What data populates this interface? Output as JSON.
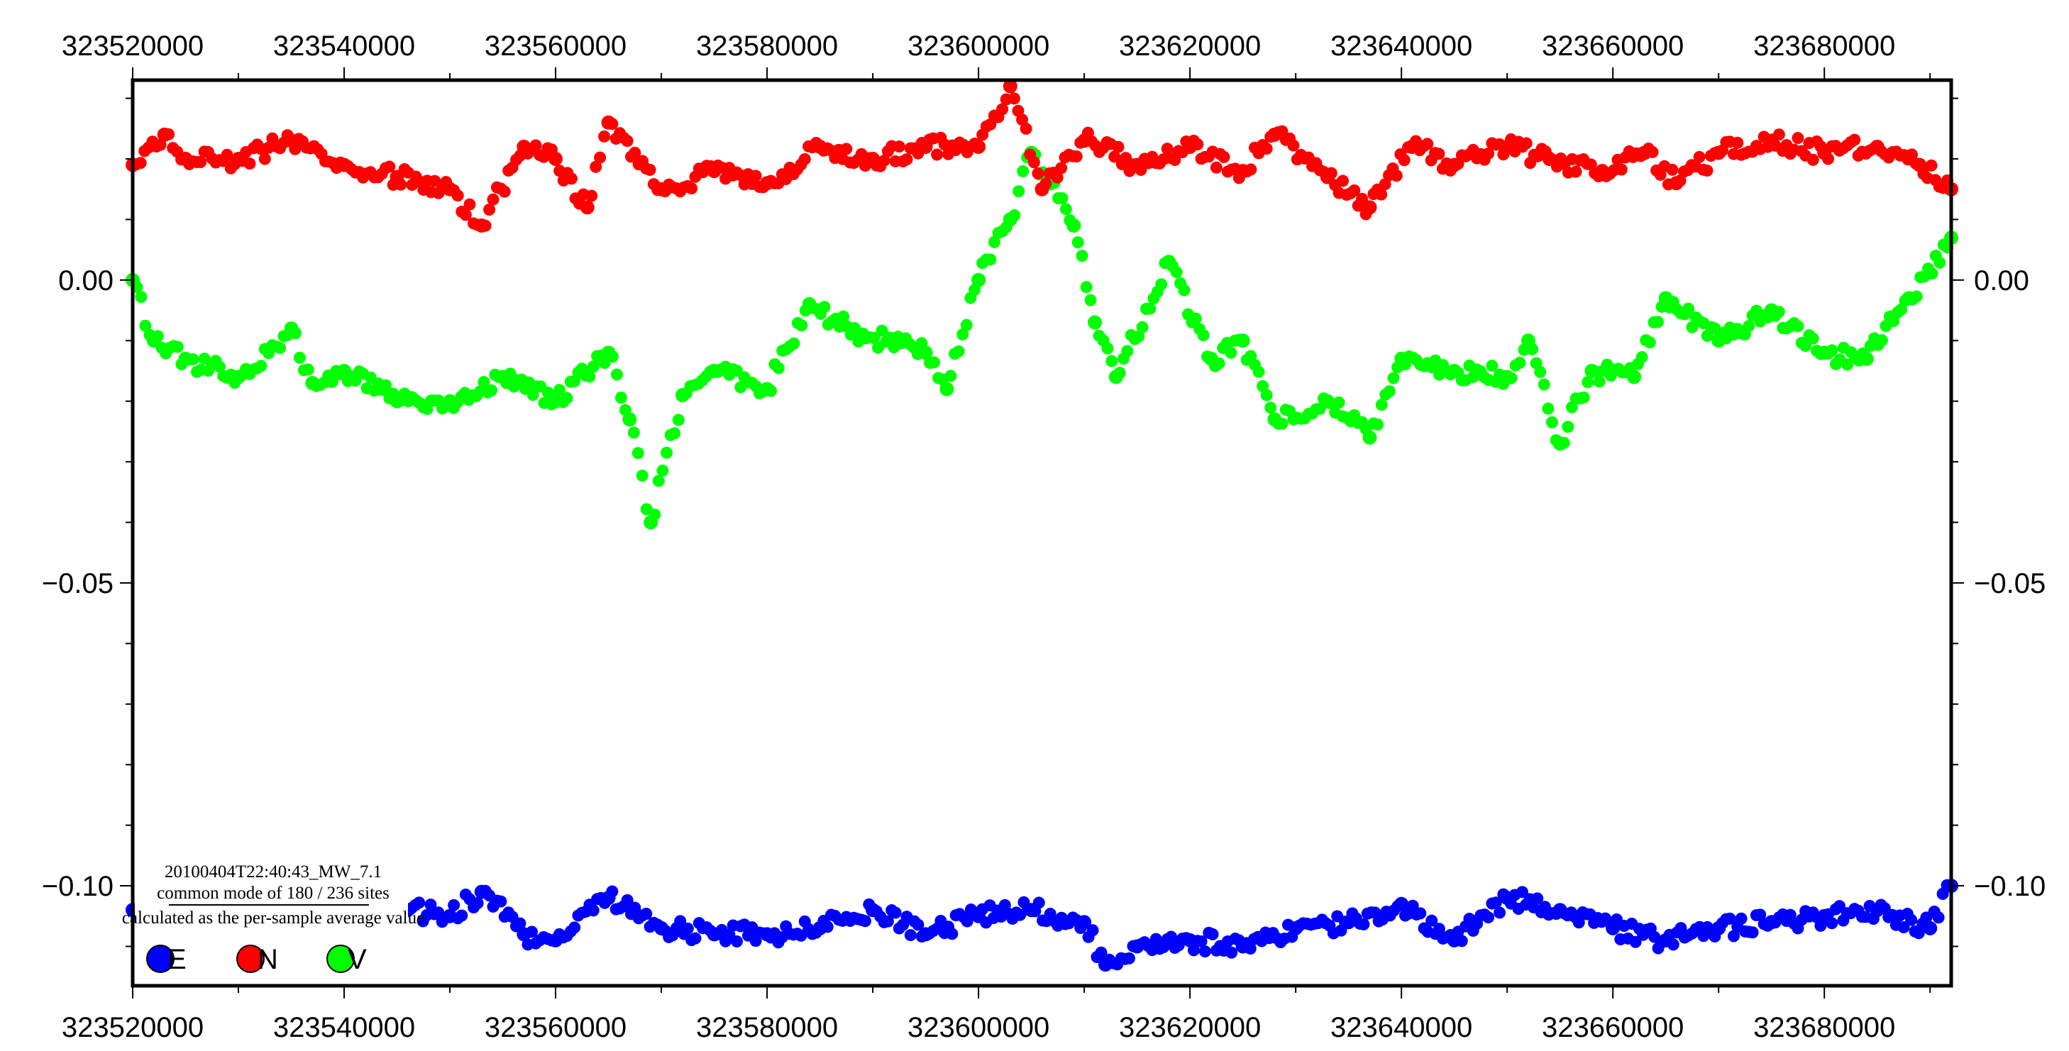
{
  "chart_data": {
    "type": "scatter",
    "title": "",
    "xlabel": "",
    "ylabel": "",
    "xlim": [
      323520000,
      323692000
    ],
    "ylim": [
      -0.1165,
      0.033
    ],
    "grid": false,
    "x_ticks": [
      323520000,
      323540000,
      323560000,
      323580000,
      323600000,
      323620000,
      323640000,
      323660000,
      323680000
    ],
    "x_tick_labels": [
      "323520000",
      "323540000",
      "323560000",
      "323580000",
      "323600000",
      "323620000",
      "323640000",
      "323660000",
      "323680000"
    ],
    "y_ticks": [
      0.0,
      -0.05,
      -0.1
    ],
    "y_tick_labels": [
      "0.00",
      "−0.05",
      "−0.10"
    ],
    "legend": {
      "position": "bottom-left",
      "title_lines": [
        "20100404T22:40:43_MW_7.1",
        "common mode of 180 / 236 sites",
        "calculated as the per-sample average value"
      ],
      "entries": [
        {
          "label": "E",
          "color": "#0000ff"
        },
        {
          "label": "N",
          "color": "#ff0000"
        },
        {
          "label": "V",
          "color": "#00ff00"
        }
      ]
    },
    "series": [
      {
        "name": "E",
        "color": "#0000ff",
        "x": [
          323520000,
          323530000,
          323540000,
          323546000,
          323550000,
          323553000,
          323557000,
          323560000,
          323565000,
          323570000,
          323575000,
          323580000,
          323585000,
          323590000,
          323595000,
          323600000,
          323605000,
          323610000,
          323612000,
          323615000,
          323620000,
          323625000,
          323630000,
          323635000,
          323640000,
          323645000,
          323650000,
          323655000,
          323660000,
          323665000,
          323670000,
          323675000,
          323680000,
          323685000,
          323690000,
          323692000
        ],
        "y": [
          -0.104,
          -0.105,
          -0.106,
          -0.104,
          -0.105,
          -0.101,
          -0.108,
          -0.109,
          -0.102,
          -0.107,
          -0.108,
          -0.108,
          -0.107,
          -0.104,
          -0.108,
          -0.105,
          -0.104,
          -0.106,
          -0.113,
          -0.11,
          -0.109,
          -0.11,
          -0.107,
          -0.106,
          -0.103,
          -0.109,
          -0.102,
          -0.104,
          -0.107,
          -0.109,
          -0.107,
          -0.106,
          -0.105,
          -0.104,
          -0.107,
          -0.1
        ]
      },
      {
        "name": "N",
        "color": "#ff0000",
        "x": [
          323520000,
          323523000,
          323525000,
          323530000,
          323535000,
          323540000,
          323545000,
          323550000,
          323553000,
          323557000,
          323560000,
          323563000,
          323565000,
          323570000,
          323575000,
          323580000,
          323585000,
          323590000,
          323595000,
          323600000,
          323603000,
          323606000,
          323610000,
          323615000,
          323620000,
          323625000,
          323628000,
          323633000,
          323637000,
          323641000,
          323645000,
          323650000,
          323654000,
          323659000,
          323663000,
          323666000,
          323670000,
          323675000,
          323680000,
          323685000,
          323689000,
          323692000
        ],
        "y": [
          0.019,
          0.024,
          0.02,
          0.02,
          0.023,
          0.019,
          0.017,
          0.015,
          0.009,
          0.022,
          0.02,
          0.012,
          0.026,
          0.015,
          0.018,
          0.016,
          0.022,
          0.02,
          0.022,
          0.022,
          0.032,
          0.015,
          0.023,
          0.019,
          0.022,
          0.018,
          0.024,
          0.017,
          0.012,
          0.022,
          0.019,
          0.022,
          0.02,
          0.018,
          0.021,
          0.016,
          0.021,
          0.023,
          0.021,
          0.022,
          0.019,
          0.015
        ]
      },
      {
        "name": "V",
        "color": "#00ff00",
        "x": [
          323520000,
          323522000,
          323525000,
          323530000,
          323535000,
          323537000,
          323540000,
          323545000,
          323550000,
          323555000,
          323560000,
          323565000,
          323567000,
          323569000,
          323572000,
          323575000,
          323580000,
          323584000,
          323589000,
          323595000,
          323597000,
          323600000,
          323603000,
          323605000,
          323609000,
          323611000,
          323613000,
          323618000,
          323622000,
          323625000,
          323628000,
          323633000,
          323637000,
          323640000,
          323645000,
          323650000,
          323652000,
          323655000,
          323658000,
          323662000,
          323665000,
          323670000,
          323675000,
          323680000,
          323684000,
          323688000,
          323692000
        ],
        "y": [
          0.0,
          -0.01,
          -0.013,
          -0.016,
          -0.008,
          -0.017,
          -0.015,
          -0.02,
          -0.02,
          -0.016,
          -0.02,
          -0.012,
          -0.023,
          -0.04,
          -0.019,
          -0.015,
          -0.018,
          -0.004,
          -0.009,
          -0.012,
          -0.018,
          0.0,
          0.01,
          0.021,
          0.009,
          -0.007,
          -0.016,
          0.003,
          -0.013,
          -0.01,
          -0.023,
          -0.02,
          -0.026,
          -0.013,
          -0.015,
          -0.016,
          -0.01,
          -0.027,
          -0.015,
          -0.016,
          -0.003,
          -0.01,
          -0.005,
          -0.012,
          -0.013,
          -0.003,
          0.007
        ]
      }
    ]
  }
}
